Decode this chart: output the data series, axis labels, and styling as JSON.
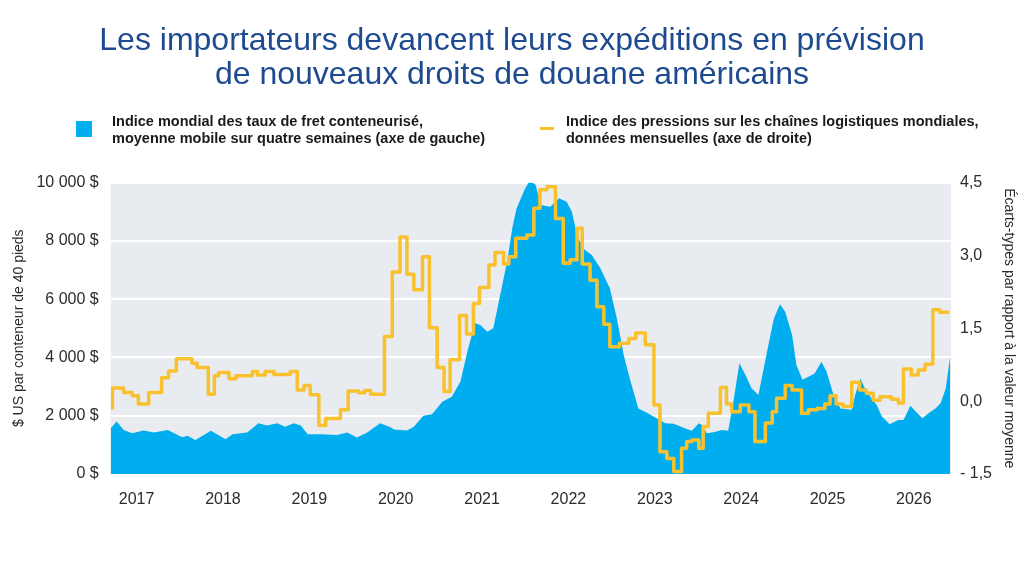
{
  "chart_data": {
    "type": "area",
    "title": "Les importateurs devancent leurs expéditions en prévision de nouveaux droits de douane américains",
    "ylabel": "$ US par conteneur de 40 pieds",
    "y2label": "Écarts-types par rapport à la valeur moyenne",
    "xlim": [
      2016.7,
      2026.43
    ],
    "xticks": [
      2017,
      2018,
      2019,
      2020,
      2021,
      2022,
      2023,
      2024,
      2025,
      2026
    ],
    "ylim": [
      0,
      10000
    ],
    "yticks": [
      {
        "value": 0,
        "label": "0 $"
      },
      {
        "value": 2000,
        "label": "2 000 $"
      },
      {
        "value": 4000,
        "label": "4 000 $"
      },
      {
        "value": 6000,
        "label": "6 000 $"
      },
      {
        "value": 8000,
        "label": "8 000 $"
      },
      {
        "value": 10000,
        "label": "10 000 $"
      }
    ],
    "y2lim": [
      -1.5,
      4.5
    ],
    "y2ticks": [
      {
        "value": -1.5,
        "label": "- 1,5"
      },
      {
        "value": 0,
        "label": "0,0"
      },
      {
        "value": 1.5,
        "label": "1,5"
      },
      {
        "value": 3,
        "label": "3,0"
      },
      {
        "value": 4.5,
        "label": "4,5"
      }
    ],
    "grid": "y",
    "legend": "top",
    "series": [
      {
        "name": "Indice mondial des taux de fret conteneurisé, moyenne mobile sur quatre semaines (axe de gauche)",
        "color": "#00aeef",
        "x": [
          2016.7,
          2016.77,
          2016.85,
          2016.95,
          2017.08,
          2017.2,
          2017.36,
          2017.53,
          2017.59,
          2017.68,
          2017.86,
          2018.03,
          2018.11,
          2018.28,
          2018.41,
          2018.51,
          2018.63,
          2018.72,
          2018.82,
          2018.9,
          2018.98,
          2019.13,
          2019.32,
          2019.44,
          2019.55,
          2019.67,
          2019.82,
          2019.94,
          2019.98,
          2020.13,
          2020.21,
          2020.32,
          2020.42,
          2020.54,
          2020.65,
          2020.75,
          2020.83,
          2020.92,
          2020.98,
          2021.06,
          2021.13,
          2021.21,
          2021.29,
          2021.35,
          2021.4,
          2021.5,
          2021.54,
          2021.58,
          2021.62,
          2021.68,
          2021.79,
          2021.89,
          2021.98,
          2022.04,
          2022.1,
          2022.17,
          2022.27,
          2022.37,
          2022.48,
          2022.56,
          2022.64,
          2022.72,
          2022.81,
          2022.91,
          2023.02,
          2023.12,
          2023.22,
          2023.37,
          2023.43,
          2023.51,
          2023.56,
          2023.6,
          2023.68,
          2023.78,
          2023.85,
          2023.91,
          2023.98,
          2024.05,
          2024.12,
          2024.2,
          2024.3,
          2024.38,
          2024.45,
          2024.51,
          2024.59,
          2024.64,
          2024.71,
          2024.78,
          2024.85,
          2024.93,
          2024.99,
          2025.07,
          2025.15,
          2025.28,
          2025.32,
          2025.38,
          2025.45,
          2025.57,
          2025.63,
          2025.72,
          2025.82,
          2025.88,
          2025.96,
          2026.02,
          2026.1,
          2026.17,
          2026.25,
          2026.31,
          2026.37,
          2026.42
        ],
        "values": [
          1570,
          1800,
          1510,
          1400,
          1490,
          1420,
          1510,
          1260,
          1310,
          1170,
          1480,
          1190,
          1360,
          1420,
          1740,
          1660,
          1740,
          1620,
          1740,
          1660,
          1360,
          1360,
          1340,
          1420,
          1250,
          1420,
          1740,
          1600,
          1530,
          1490,
          1620,
          2000,
          2050,
          2480,
          2650,
          3170,
          4200,
          5170,
          5110,
          4880,
          5000,
          6140,
          7280,
          8430,
          9120,
          9800,
          10000,
          10000,
          9920,
          9230,
          9170,
          9460,
          9340,
          9000,
          8200,
          7740,
          7510,
          7060,
          6370,
          5340,
          4080,
          3170,
          2250,
          2100,
          1910,
          1740,
          1720,
          1540,
          1480,
          1740,
          1660,
          1400,
          1430,
          1510,
          1480,
          2480,
          3800,
          3400,
          2940,
          2710,
          4200,
          5340,
          5820,
          5570,
          4770,
          3740,
          3230,
          3340,
          3450,
          3850,
          3510,
          2710,
          2250,
          2200,
          2710,
          3280,
          2830,
          2370,
          1970,
          1710,
          1850,
          1850,
          2340,
          2140,
          1910,
          2080,
          2250,
          2430,
          2940,
          4020
        ]
      },
      {
        "name": "Indice des pressions sur les chaînes logistiques mondiales, données mensuelles (axe de droite)",
        "type": "step",
        "axis": "y2",
        "color": "#f9c12e",
        "x": [
          2016.7,
          2016.72,
          2016.85,
          2016.95,
          2017.02,
          2017.14,
          2017.29,
          2017.37,
          2017.46,
          2017.64,
          2017.7,
          2017.83,
          2017.9,
          2017.95,
          2018.07,
          2018.15,
          2018.34,
          2018.4,
          2018.49,
          2018.59,
          2018.78,
          2018.86,
          2018.94,
          2019.01,
          2019.11,
          2019.19,
          2019.36,
          2019.45,
          2019.57,
          2019.64,
          2019.71,
          2019.87,
          2019.96,
          2020.05,
          2020.13,
          2020.21,
          2020.31,
          2020.39,
          2020.48,
          2020.56,
          2020.63,
          2020.74,
          2020.82,
          2020.9,
          2020.97,
          2021.08,
          2021.15,
          2021.25,
          2021.31,
          2021.39,
          2021.52,
          2021.6,
          2021.67,
          2021.75,
          2021.85,
          2021.94,
          2022.02,
          2022.1,
          2022.16,
          2022.25,
          2022.33,
          2022.41,
          2022.48,
          2022.59,
          2022.7,
          2022.78,
          2022.89,
          2022.99,
          2023.06,
          2023.14,
          2023.22,
          2023.31,
          2023.37,
          2023.43,
          2023.51,
          2023.56,
          2023.62,
          2023.76,
          2023.83,
          2023.89,
          2023.99,
          2024.09,
          2024.16,
          2024.28,
          2024.36,
          2024.41,
          2024.51,
          2024.59,
          2024.7,
          2024.78,
          2024.88,
          2024.97,
          2025.03,
          2025.1,
          2025.18,
          2025.28,
          2025.37,
          2025.45,
          2025.53,
          2025.61,
          2025.74,
          2025.82,
          2025.88,
          2025.97,
          2026.05,
          2026.13,
          2026.22,
          2026.3,
          2026.41
        ],
        "values": [
          -0.14,
          0.27,
          0.18,
          0.11,
          -0.06,
          0.18,
          0.48,
          0.62,
          0.87,
          0.78,
          0.69,
          0.14,
          0.52,
          0.59,
          0.46,
          0.52,
          0.61,
          0.54,
          0.61,
          0.55,
          0.61,
          0.23,
          0.32,
          0.13,
          -0.5,
          -0.36,
          -0.18,
          0.21,
          0.17,
          0.22,
          0.14,
          1.33,
          2.66,
          3.38,
          2.61,
          2.29,
          2.97,
          1.51,
          0.69,
          0.2,
          0.85,
          1.76,
          1.38,
          2.01,
          2.34,
          2.8,
          3.06,
          2.82,
          2.97,
          3.35,
          3.42,
          3.97,
          4.35,
          4.41,
          3.76,
          2.84,
          2.91,
          3.56,
          2.82,
          2.49,
          1.94,
          1.58,
          1.12,
          1.19,
          1.29,
          1.4,
          1.16,
          -0.08,
          -1.04,
          -1.18,
          -1.45,
          -0.97,
          -0.83,
          -0.8,
          -0.97,
          -0.52,
          -0.25,
          0.28,
          -0.06,
          -0.22,
          -0.08,
          -0.22,
          -0.83,
          -0.45,
          -0.22,
          0.06,
          0.32,
          0.23,
          -0.25,
          -0.18,
          -0.15,
          -0.06,
          0.11,
          -0.06,
          -0.11,
          0.39,
          0.23,
          0.16,
          0.02,
          0.09,
          0.04,
          -0.04,
          0.66,
          0.54,
          0.64,
          0.76,
          1.88,
          1.83,
          1.83
        ]
      }
    ]
  }
}
